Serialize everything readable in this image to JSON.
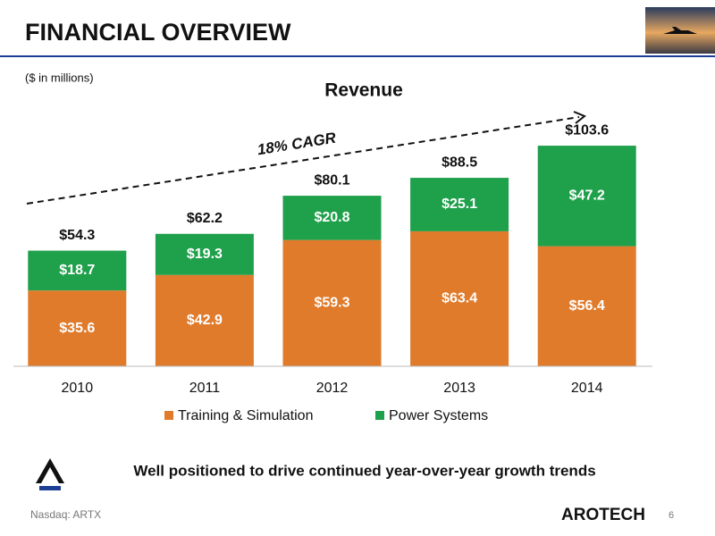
{
  "header": {
    "title": "FINANCIAL OVERVIEW"
  },
  "chart_data": {
    "type": "bar",
    "stacked": true,
    "title": "Revenue",
    "subtitle": "($ in millions)",
    "annotation": "18% CAGR",
    "categories": [
      "2010",
      "2011",
      "2012",
      "2013",
      "2014"
    ],
    "series": [
      {
        "name": "Training & Simulation",
        "color": "#e07b2c",
        "values": [
          35.6,
          42.9,
          59.3,
          63.4,
          56.4
        ],
        "value_labels": [
          "$35.6",
          "$42.9",
          "$59.3",
          "$63.4",
          "$56.4"
        ]
      },
      {
        "name": "Power Systems",
        "color": "#1fa04b",
        "values": [
          18.7,
          19.3,
          20.8,
          25.1,
          47.2
        ],
        "value_labels": [
          "$18.7",
          "$19.3",
          "$20.8",
          "$25.1",
          "$47.2"
        ]
      }
    ],
    "totals": [
      54.3,
      62.2,
      80.1,
      88.5,
      103.6
    ],
    "total_labels": [
      "$54.3",
      "$62.2",
      "$80.1",
      "$88.5",
      "$103.6"
    ],
    "ylim": [
      0,
      120
    ],
    "legend": "bottom"
  },
  "footer": {
    "tagline": "Well positioned to drive continued year-over-year growth trends",
    "ticker": "Nasdaq: ARTX",
    "logo": "AROTECH",
    "page": "6"
  }
}
